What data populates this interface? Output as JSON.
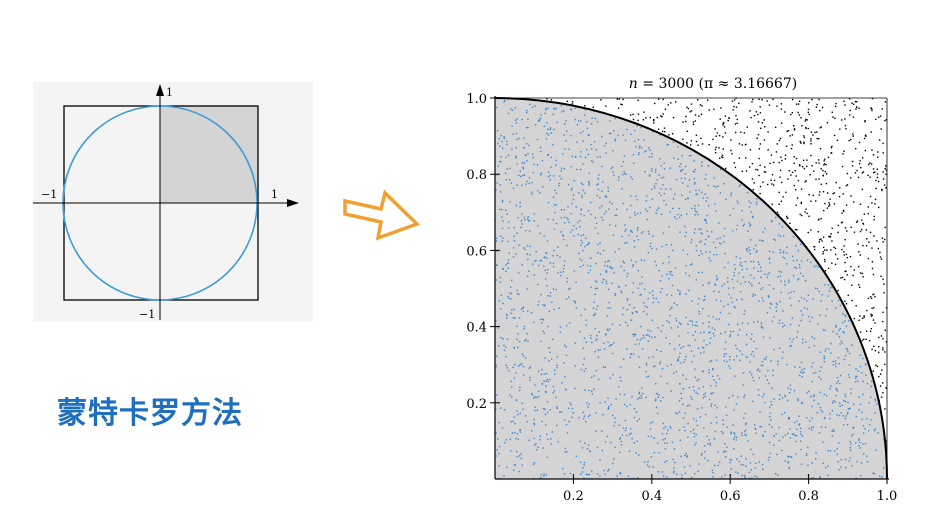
{
  "method_title": "蒙特卡罗方法",
  "colors": {
    "circle": "#3b9bd6",
    "shade": "#d4d4d4",
    "inside_point": "#3d86d2",
    "outside_point": "#000000",
    "arrow": "#f0a030",
    "title": "#1f6fbf"
  },
  "unit_diagram": {
    "tick_pos_y": "1",
    "tick_neg_y": "−1",
    "tick_neg_x": "−1",
    "tick_pos_x": "1"
  },
  "chart_data": {
    "type": "scatter",
    "title": "n = 3000 (π ≈ 3.16667)",
    "title_n": "n",
    "title_rest": " = 3000 (π ≈ 3.16667)",
    "n": 3000,
    "pi_estimate": 3.16667,
    "xlim": [
      0,
      1
    ],
    "ylim": [
      0,
      1
    ],
    "xticks": [
      "0.2",
      "0.4",
      "0.6",
      "0.8",
      "1.0"
    ],
    "yticks": [
      "0.2",
      "0.4",
      "0.6",
      "0.8",
      "1.0"
    ],
    "xtick_values": [
      0.2,
      0.4,
      0.6,
      0.8,
      1.0
    ],
    "ytick_values": [
      0.2,
      0.4,
      0.6,
      0.8,
      1.0
    ],
    "series": [
      {
        "color": "#3d86d2"
      },
      {
        "color": "#000000"
      }
    ],
    "boundary": "x^2 + y^2 = 1"
  }
}
